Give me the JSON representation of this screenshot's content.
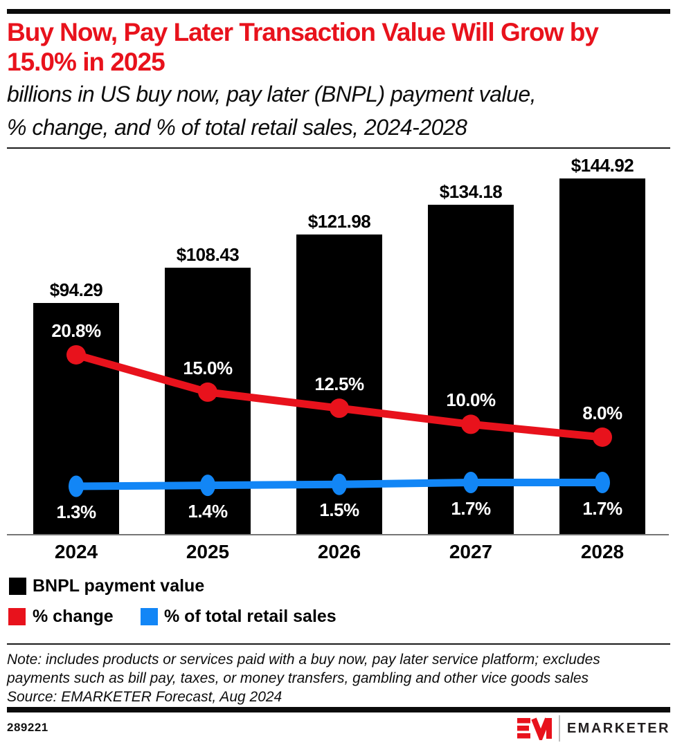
{
  "header": {
    "title_lines": [
      "Buy Now, Pay Later Transaction Value Will Grow by",
      "15.0% in 2025"
    ],
    "subtitle_lines": [
      "billions in US buy now, pay later (BNPL) payment value,",
      "% change, and % of total retail sales, 2024-2028"
    ],
    "title_color": "#e8121c"
  },
  "chart_data": {
    "type": "bar",
    "subtype": "bar-and-line-combo",
    "title": "Buy Now, Pay Later Transaction Value Will Grow by 15.0% in 2025",
    "subtitle": "billions in US buy now, pay later (BNPL) payment value, % change, and % of total retail sales, 2024-2028",
    "categories": [
      "2024",
      "2025",
      "2026",
      "2027",
      "2028"
    ],
    "series": [
      {
        "name": "BNPL payment value",
        "type": "bar",
        "color": "#000000",
        "unit": "USD billions",
        "values": [
          94.29,
          108.43,
          121.98,
          134.18,
          144.92
        ],
        "labels": [
          "$94.29",
          "$108.43",
          "$121.98",
          "$134.18",
          "$144.92"
        ],
        "label_color": "#000000"
      },
      {
        "name": "% change",
        "type": "line",
        "color": "#e8121c",
        "values": [
          20.8,
          15.0,
          12.5,
          10.0,
          8.0
        ],
        "labels": [
          "20.8%",
          "15.0%",
          "12.5%",
          "10.0%",
          "8.0%"
        ],
        "label_color": "#ffffff"
      },
      {
        "name": "% of total retail sales",
        "type": "line",
        "color": "#1286f6",
        "values": [
          1.3,
          1.4,
          1.5,
          1.7,
          1.7
        ],
        "labels": [
          "1.3%",
          "1.4%",
          "1.5%",
          "1.7%",
          "1.7%"
        ],
        "label_color": "#ffffff"
      }
    ],
    "legend_position": "bottom-left",
    "grid": false,
    "axis_labels_shown": false
  },
  "footnote": {
    "note_lines": [
      "Note: includes products or services paid with a buy now, pay later service platform; excludes",
      "payments such as bill pay, taxes, or money transfers, gambling and other vice goods sales"
    ],
    "source": "Source: EMARKETER Forecast, Aug 2024"
  },
  "footer": {
    "chart_id": "289221",
    "brand_monogram": "EM",
    "brand_wordmark": "EMARKETER"
  }
}
